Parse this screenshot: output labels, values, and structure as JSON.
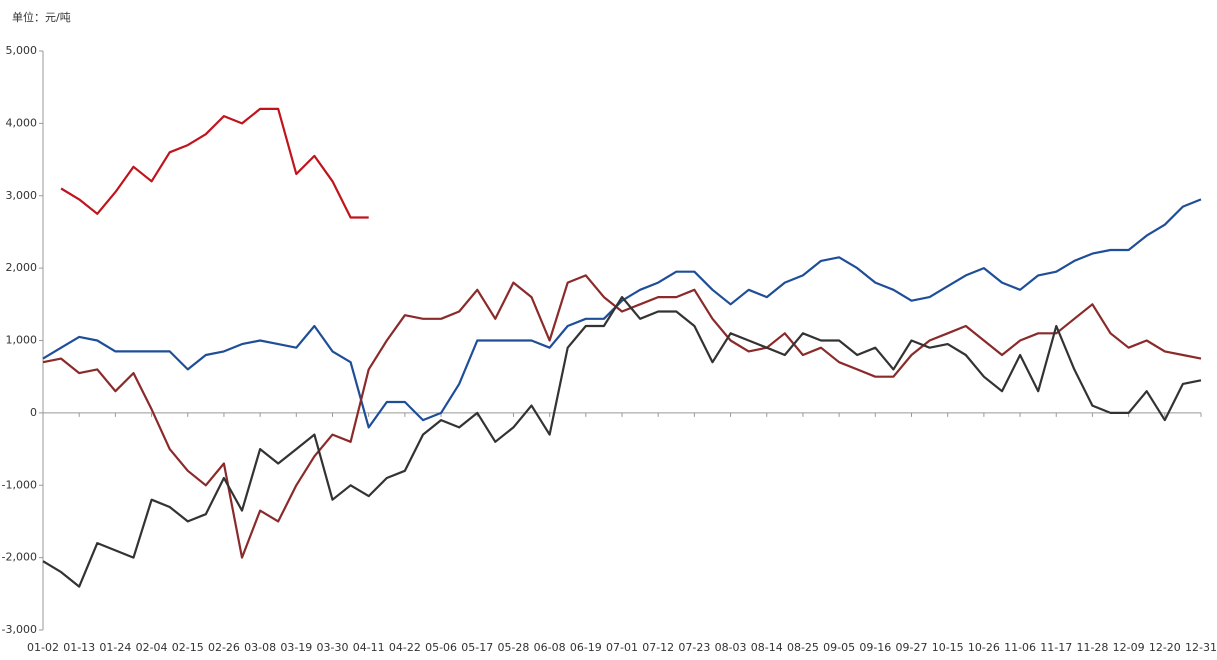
{
  "chart_data": {
    "type": "line",
    "unit_label": "单位：元/吨",
    "categories": [
      "01-02",
      null,
      "01-13",
      null,
      "01-24",
      null,
      "02-04",
      null,
      "02-15",
      null,
      "02-26",
      null,
      "03-08",
      null,
      "03-19",
      null,
      "03-30",
      null,
      "04-11",
      null,
      "04-22",
      null,
      "05-06",
      null,
      "05-17",
      null,
      "05-28",
      null,
      "06-08",
      null,
      "06-19",
      null,
      "07-01",
      null,
      "07-12",
      null,
      "07-23",
      null,
      "08-03",
      null,
      "08-14",
      null,
      "08-25",
      null,
      "09-05",
      null,
      "09-16",
      null,
      "09-27",
      null,
      "10-15",
      null,
      "10-26",
      null,
      "11-06",
      null,
      "11-17",
      null,
      "11-28",
      null,
      "12-09",
      null,
      "12-20",
      null,
      "12-31"
    ],
    "ylim": [
      -3000,
      5000
    ],
    "yticks": [
      {
        "value": -3000,
        "label": "-3,000"
      },
      {
        "value": -2000,
        "label": "-2,000"
      },
      {
        "value": -1000,
        "label": "-1,000"
      },
      0,
      {
        "value": 1000,
        "label": "1,000"
      },
      {
        "value": 2000,
        "label": "2,000"
      },
      {
        "value": 3000,
        "label": "3,000"
      },
      {
        "value": 4000,
        "label": "4,000"
      },
      {
        "value": 5000,
        "label": "5,000"
      }
    ],
    "series": [
      {
        "color": "#c0141c",
        "values": [
          null,
          3100,
          2950,
          2750,
          3050,
          3400,
          3200,
          3600,
          3700,
          3850,
          4100,
          4000,
          4200,
          4200,
          3300,
          3550,
          3200,
          2700,
          2700,
          null,
          null,
          null,
          null,
          null,
          null,
          null,
          null,
          null,
          null,
          null,
          null,
          null,
          null,
          null,
          null,
          null,
          null,
          null,
          null,
          null,
          null,
          null,
          null,
          null,
          null,
          null,
          null,
          null,
          null,
          null,
          null,
          null,
          null,
          null,
          null,
          null,
          null,
          null,
          null,
          null,
          null,
          null,
          null,
          null,
          null
        ]
      },
      {
        "color": "#1f4e99",
        "values": [
          750,
          900,
          1050,
          1000,
          850,
          850,
          850,
          850,
          600,
          800,
          850,
          950,
          1000,
          950,
          900,
          1200,
          850,
          700,
          -200,
          150,
          150,
          -100,
          0,
          400,
          1000,
          1000,
          1000,
          1000,
          900,
          1200,
          1300,
          1300,
          1550,
          1700,
          1800,
          1950,
          1950,
          1700,
          1500,
          1700,
          1600,
          1800,
          1900,
          2100,
          2150,
          2000,
          1800,
          1700,
          1550,
          1600,
          1750,
          1900,
          2000,
          1800,
          1700,
          1900,
          1950,
          2100,
          2200,
          2250,
          2250,
          2450,
          2600,
          2850,
          2950
        ]
      },
      {
        "color": "#8b2a2a",
        "values": [
          700,
          750,
          550,
          600,
          300,
          550,
          50,
          -500,
          -800,
          -1000,
          -700,
          -2000,
          -1350,
          -1500,
          -1000,
          -600,
          -300,
          -400,
          600,
          1000,
          1350,
          1300,
          1300,
          1400,
          1700,
          1300,
          1800,
          1600,
          1000,
          1800,
          1900,
          1600,
          1400,
          1500,
          1600,
          1600,
          1700,
          1300,
          1000,
          850,
          900,
          1100,
          800,
          900,
          700,
          600,
          500,
          500,
          800,
          1000,
          1100,
          1200,
          1000,
          800,
          1000,
          1100,
          1100,
          1300,
          1500,
          1100,
          900,
          1000,
          850,
          800,
          750
        ]
      },
      {
        "color": "#333333",
        "values": [
          -2050,
          -2200,
          -2400,
          -1800,
          -1900,
          -2000,
          -1200,
          -1300,
          -1500,
          -1400,
          -900,
          -1350,
          -500,
          -700,
          -500,
          -300,
          -1200,
          -1000,
          -1150,
          -900,
          -800,
          -300,
          -100,
          -200,
          0,
          -400,
          -200,
          100,
          -300,
          900,
          1200,
          1200,
          1600,
          1300,
          1400,
          1400,
          1200,
          700,
          1100,
          1000,
          900,
          800,
          1100,
          1000,
          1000,
          800,
          900,
          600,
          1000,
          900,
          950,
          800,
          500,
          300,
          800,
          300,
          1200,
          600,
          100,
          0,
          0,
          300,
          -100,
          400,
          450
        ]
      }
    ]
  }
}
